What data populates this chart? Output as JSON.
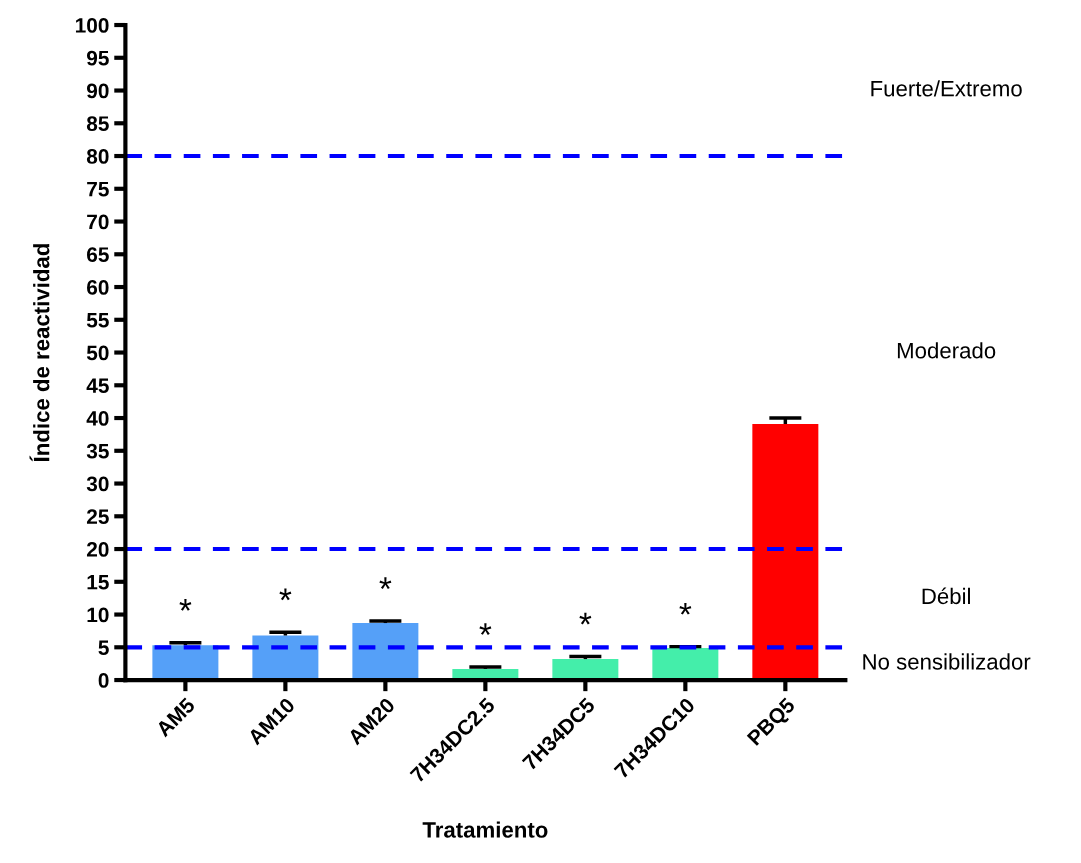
{
  "chart_data": {
    "type": "bar",
    "xlabel": "Tratamiento",
    "ylabel": "Índice de reactividad",
    "categories": [
      "AM5",
      "AM10",
      "AM20",
      "7H34DC2.5",
      "7H34DC5",
      "7H34DC10",
      "PBQ5"
    ],
    "values": [
      5.3,
      6.8,
      8.7,
      1.7,
      3.2,
      4.9,
      39.1
    ],
    "errors": [
      [
        5.3,
        5.7
      ],
      [
        6.8,
        7.3
      ],
      [
        8.7,
        9.0
      ],
      [
        1.7,
        2.0
      ],
      [
        3.2,
        3.6
      ],
      [
        4.9,
        5.1
      ],
      [
        39.1,
        40.0
      ]
    ],
    "colors": [
      "#55a0f8",
      "#55a0f8",
      "#55a0f8",
      "#44eeaa",
      "#44eeaa",
      "#44eeaa",
      "#ff0000"
    ],
    "ylim": [
      0,
      100
    ],
    "yticks": [
      0,
      5,
      10,
      15,
      20,
      25,
      30,
      35,
      40,
      45,
      50,
      55,
      60,
      65,
      70,
      75,
      80,
      85,
      90,
      95,
      100
    ],
    "grid": false,
    "legend": false,
    "ref_lines": [
      {
        "axis": "y",
        "value": 5,
        "color": "#0000ff",
        "line_style": "dashed"
      },
      {
        "axis": "y",
        "value": 20,
        "color": "#0000ff",
        "line_style": "dashed"
      },
      {
        "axis": "y",
        "value": 80,
        "color": "#0000ff",
        "line_style": "dashed"
      }
    ],
    "annotations": [
      "*",
      "*",
      "*",
      "*",
      "*",
      "*",
      "No sensibilizador",
      "Débil",
      "Moderado",
      "Fuerte/Extremo"
    ]
  }
}
